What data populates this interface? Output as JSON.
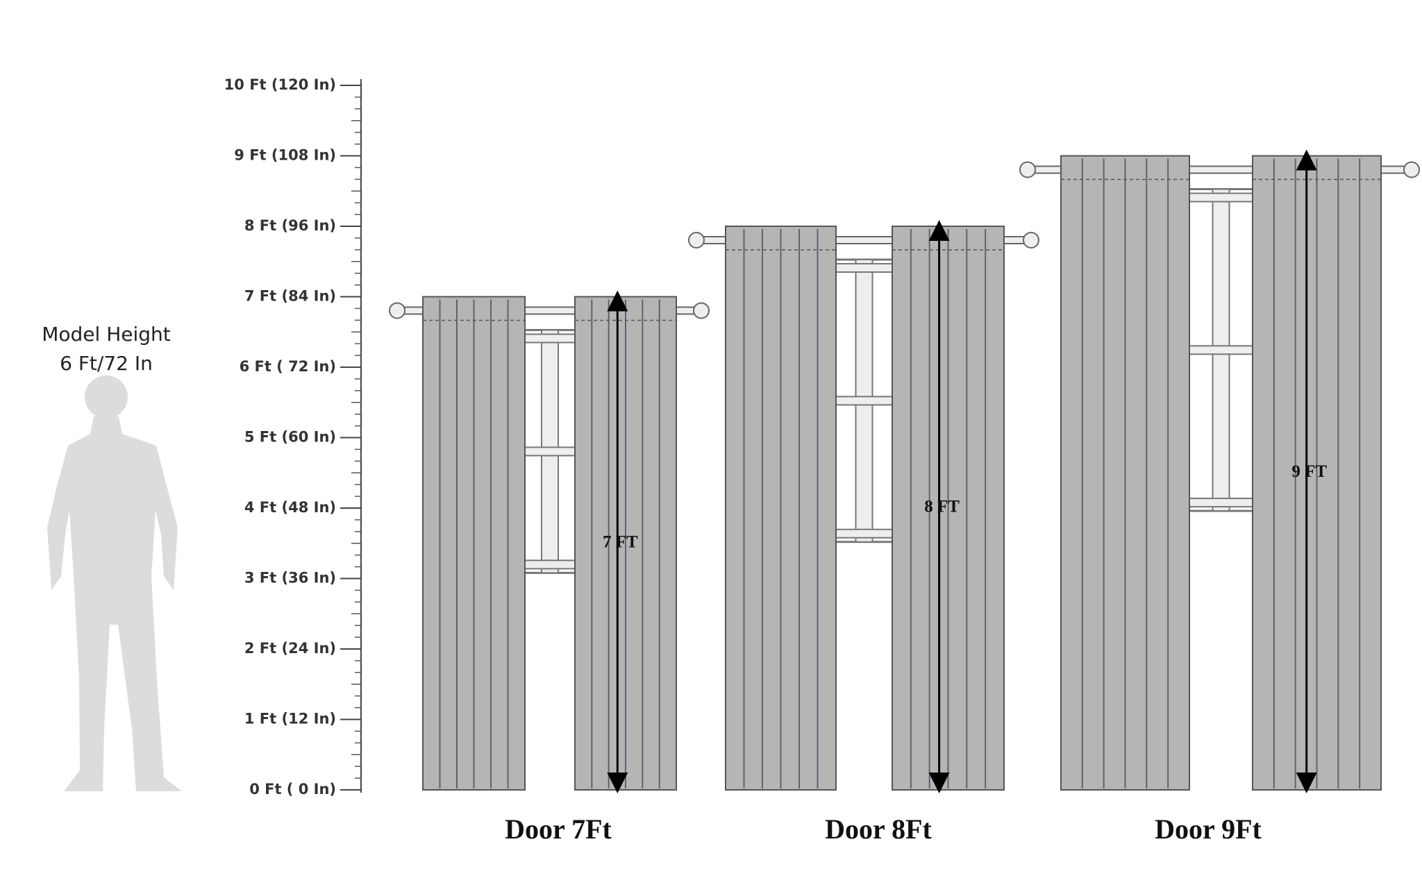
{
  "model": {
    "title": "Model Height",
    "height": "6 Ft/72 In"
  },
  "ruler": {
    "ticks": [
      {
        "value": 0,
        "label": "0 Ft ( 0  In)"
      },
      {
        "value": 1,
        "label": "1 Ft (12 In)"
      },
      {
        "value": 2,
        "label": "2 Ft (24 In)"
      },
      {
        "value": 3,
        "label": "3 Ft (36 In)"
      },
      {
        "value": 4,
        "label": "4 Ft (48 In)"
      },
      {
        "value": 5,
        "label": "5 Ft (60 In)"
      },
      {
        "value": 6,
        "label": "6 Ft ( 72 In)"
      },
      {
        "value": 7,
        "label": "7 Ft (84 In)"
      },
      {
        "value": 8,
        "label": "8 Ft (96 In)"
      },
      {
        "value": 9,
        "label": "9 Ft (108 In)"
      },
      {
        "value": 10,
        "label": "10 Ft (120 In)"
      }
    ]
  },
  "doors": [
    {
      "label": "Door 7Ft",
      "height": {
        "value": 7,
        "label": "7 FT"
      }
    },
    {
      "label": "Door 8Ft",
      "height": {
        "value": 8,
        "label": "8 FT"
      }
    },
    {
      "label": "Door 9Ft",
      "height": {
        "value": 9,
        "label": "9 FT"
      }
    }
  ]
}
